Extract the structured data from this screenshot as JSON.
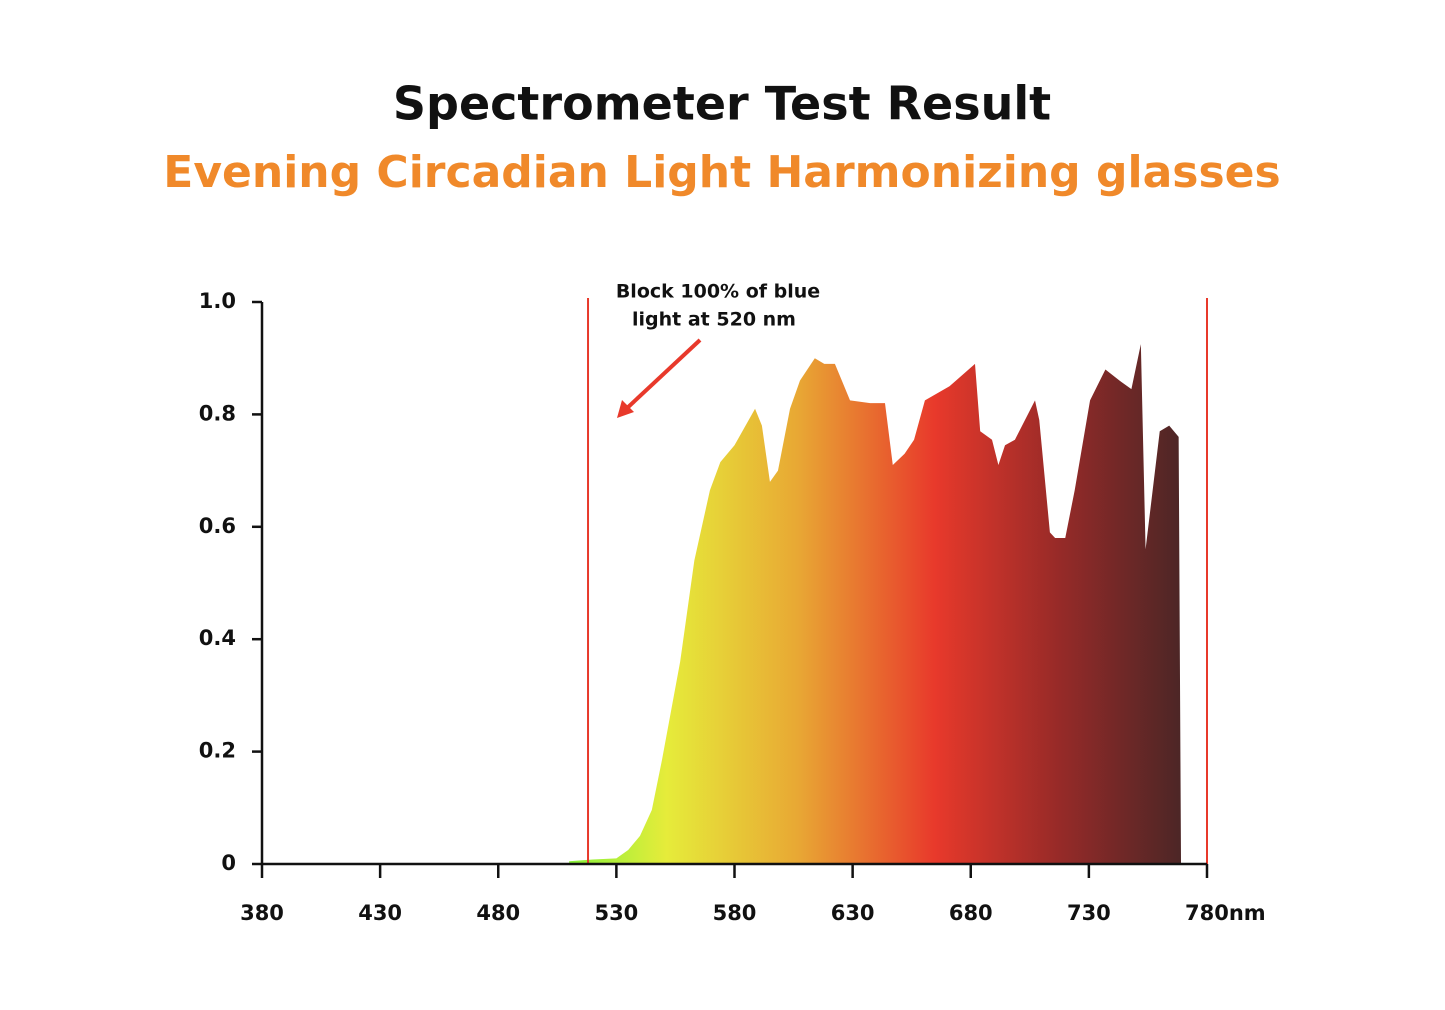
{
  "chart_data": {
    "type": "area",
    "title": "Spectrometer Test Result",
    "subtitle": "Evening Circadian Light Harmonizing glasses",
    "annotation": [
      "Block 100% of blue",
      "light at 520 nm"
    ],
    "x": [
      510,
      520,
      530,
      535,
      540,
      545,
      549.3,
      557,
      563,
      569.6,
      574,
      580,
      588.7,
      591.6,
      595,
      598.4,
      603.5,
      607.7,
      614,
      618,
      622.5,
      628.9,
      637.4,
      643.7,
      647,
      652,
      656,
      660.6,
      671,
      681.8,
      684,
      689,
      691.7,
      694.5,
      698.7,
      707.2,
      709,
      713.5,
      715.7,
      720,
      724,
      730.5,
      737,
      743,
      748,
      752,
      754,
      760,
      764,
      766,
      768,
      769
    ],
    "values": [
      0.005,
      0.008,
      0.01,
      0.025,
      0.05,
      0.096,
      0.185,
      0.36,
      0.54,
      0.665,
      0.715,
      0.745,
      0.81,
      0.78,
      0.68,
      0.7,
      0.81,
      0.86,
      0.9,
      0.89,
      0.89,
      0.825,
      0.82,
      0.82,
      0.71,
      0.73,
      0.755,
      0.825,
      0.85,
      0.89,
      0.77,
      0.755,
      0.71,
      0.745,
      0.755,
      0.825,
      0.79,
      0.59,
      0.58,
      0.58,
      0.665,
      0.825,
      0.88,
      0.86,
      0.845,
      0.925,
      0.56,
      0.77,
      0.78,
      0.77,
      0.76,
      0
    ],
    "reference_lines": [
      518,
      780
    ],
    "reference_color": "#e8392b",
    "xlim": [
      380,
      780
    ],
    "ylim": [
      0,
      1
    ],
    "xticks": [
      380,
      430,
      480,
      530,
      580,
      630,
      680,
      730,
      {
        "value": 780,
        "label": "780nm"
      }
    ],
    "yticks": [
      0,
      0.2,
      0.4,
      0.6,
      0.8,
      {
        "value": 1,
        "label": "1.0"
      }
    ]
  }
}
